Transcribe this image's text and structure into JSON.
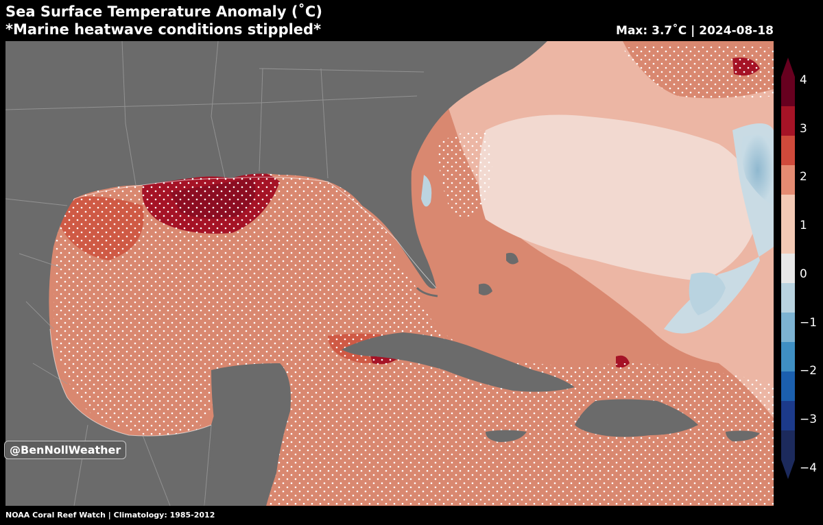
{
  "header": {
    "title": "Sea Surface Temperature Anomaly (˚C)",
    "subtitle": "*Marine heatwave conditions stippled*",
    "stats": "Max: 3.7˚C | 2024-08-18"
  },
  "map": {
    "region": "Gulf of Mexico, Caribbean Sea and western Atlantic",
    "ocean_base_color": "#d98870",
    "land_color": "#6b6b6b"
  },
  "colorbar": {
    "range": [
      -4,
      4
    ],
    "ticks": [
      {
        "label": "4",
        "value": 4
      },
      {
        "label": "3",
        "value": 3
      },
      {
        "label": "2",
        "value": 2
      },
      {
        "label": "1",
        "value": 1
      },
      {
        "label": "0",
        "value": 0
      },
      {
        "label": "−1",
        "value": -1
      },
      {
        "label": "−2",
        "value": -2
      },
      {
        "label": "−3",
        "value": -3
      },
      {
        "label": "−4",
        "value": -4
      }
    ],
    "colors": [
      "#67001f",
      "#a51326",
      "#cf4a3b",
      "#e48b72",
      "#f3c9b5",
      "#e8e8e8",
      "#b9d3e0",
      "#7db3d2",
      "#3f8fc3",
      "#1b5fae",
      "#1c3a8a",
      "#1c2a5c"
    ]
  },
  "watermark": "@BenNollWeather",
  "footer": "NOAA Coral Reef Watch | Climatology: 1985-2012"
}
